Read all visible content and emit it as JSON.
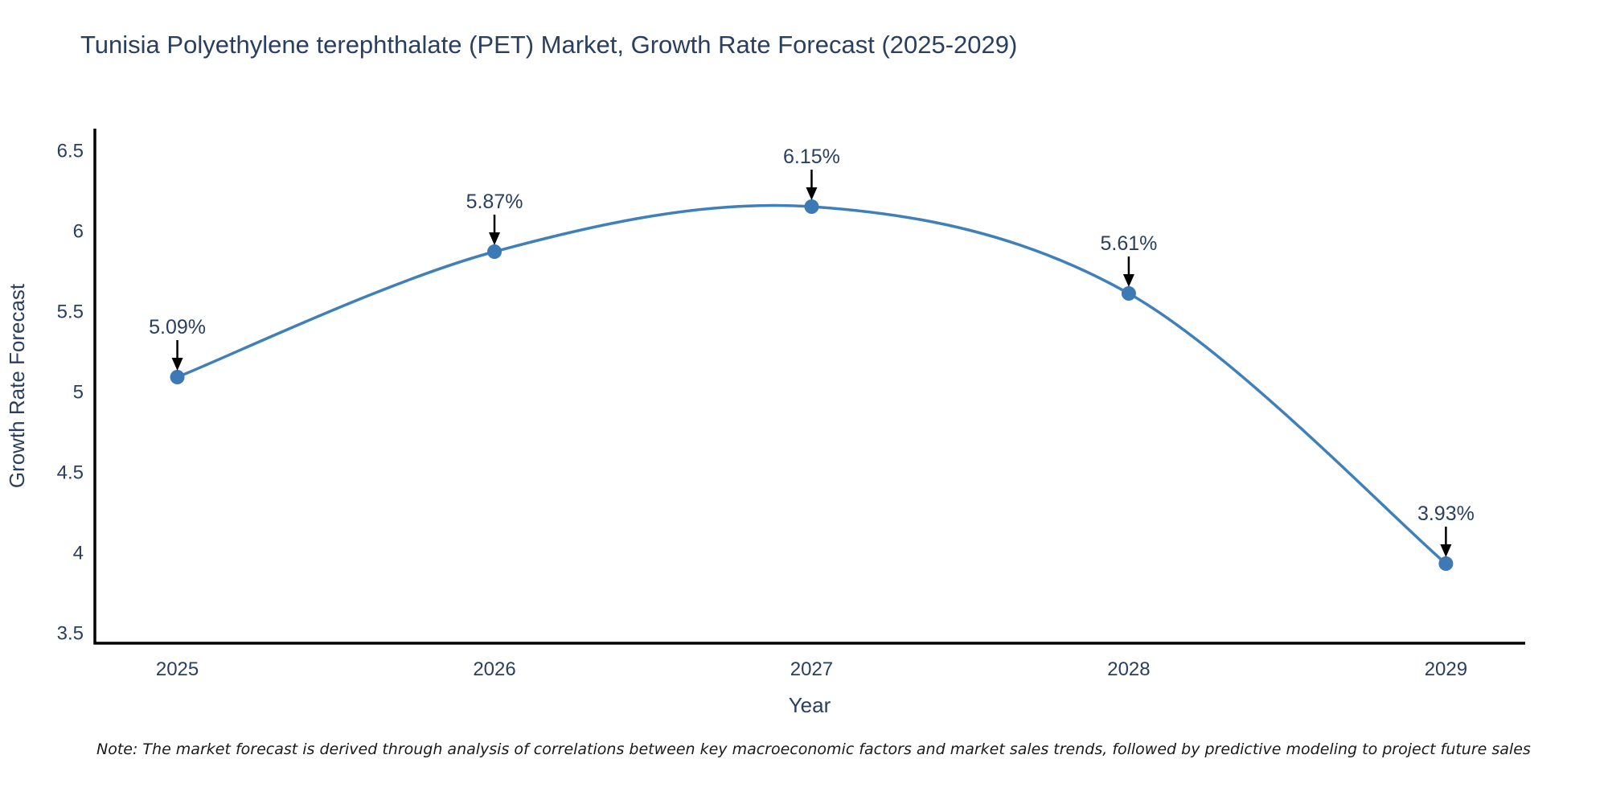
{
  "chart_data": {
    "type": "line",
    "title": "Tunisia Polyethylene terephthalate (PET) Market, Growth Rate Forecast (2025-2029)",
    "xlabel": "Year",
    "ylabel": "Growth Rate Forecast",
    "x": [
      2025,
      2026,
      2027,
      2028,
      2029
    ],
    "values": [
      5.09,
      5.87,
      6.15,
      5.61,
      3.93
    ],
    "point_labels": [
      "5.09%",
      "5.87%",
      "6.15%",
      "5.61%",
      "3.93%"
    ],
    "series": [
      {
        "name": "Growth Rate Forecast",
        "values": [
          5.09,
          5.87,
          6.15,
          5.61,
          3.93
        ]
      }
    ],
    "xtick_labels": [
      "2025",
      "2026",
      "2027",
      "2028",
      "2029"
    ],
    "yticks": [
      3.5,
      4,
      4.5,
      5,
      5.5,
      6,
      6.5
    ],
    "ytick_labels": [
      "3.5",
      "4",
      "4.5",
      "5",
      "5.5",
      "6",
      "6.5"
    ],
    "xlim": [
      2024.74,
      2029.25
    ],
    "ylim": [
      3.435,
      6.635
    ],
    "grid": false,
    "legend": "none",
    "line_shape": "spline",
    "colors": {
      "line": "#4080b8",
      "marker": "#3d7ab5",
      "text": "#2a3f5f",
      "axis": "#000000",
      "arrow": "#000000",
      "background": "#ffffff"
    },
    "note": "Note: The market forecast is derived through analysis of correlations between key macroeconomic factors and market sales trends, followed by predictive modeling to project future sales"
  }
}
